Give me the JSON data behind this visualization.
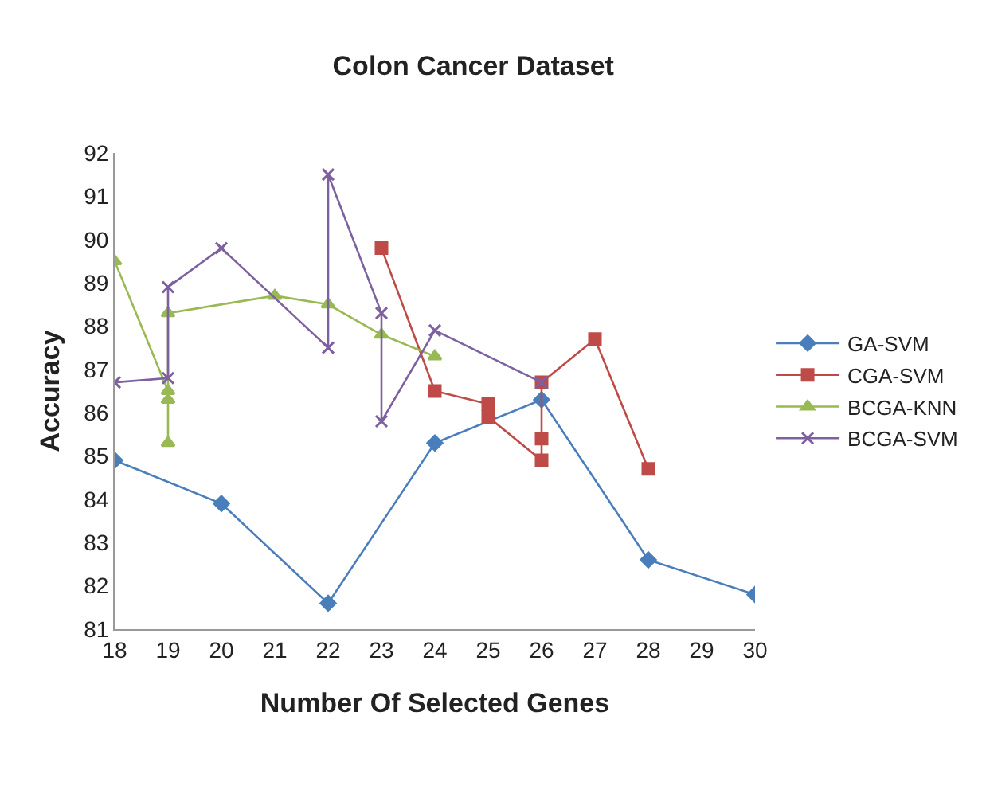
{
  "chart_data": {
    "type": "line",
    "title": "Colon Cancer Dataset",
    "xlabel": "Number Of Selected Genes",
    "ylabel": "Accuracy",
    "xlim": [
      18,
      30
    ],
    "xticks": [
      18,
      19,
      20,
      21,
      22,
      23,
      24,
      25,
      26,
      27,
      28,
      29,
      30
    ],
    "ylim": [
      81,
      92
    ],
    "yticks": [
      81,
      82,
      83,
      84,
      85,
      86,
      87,
      88,
      89,
      90,
      91,
      92
    ],
    "grid": false,
    "legend": "right",
    "series": [
      {
        "name": "GA-SVM",
        "color": "#4a7ebb",
        "marker": "diamond",
        "x": [
          18,
          20,
          22,
          24,
          26,
          28,
          30
        ],
        "values": [
          84.9,
          83.9,
          81.6,
          85.3,
          86.3,
          82.6,
          81.8
        ]
      },
      {
        "name": "CGA-SVM",
        "color": "#be4b48",
        "marker": "square",
        "x": [
          23,
          24,
          25,
          25,
          26,
          26,
          26,
          27,
          28
        ],
        "values": [
          89.8,
          86.5,
          86.2,
          85.9,
          84.9,
          85.4,
          86.7,
          87.7,
          84.7
        ]
      },
      {
        "name": "BCGA-KNN",
        "color": "#98b954",
        "marker": "triangle",
        "x": [
          18,
          19,
          19,
          19,
          19,
          21,
          22,
          23,
          24
        ],
        "values": [
          89.5,
          86.5,
          86.3,
          85.3,
          88.3,
          88.7,
          88.5,
          87.8,
          87.3
        ]
      },
      {
        "name": "BCGA-SVM",
        "color": "#7d60a0",
        "marker": "cross",
        "x": [
          18,
          19,
          19,
          20,
          22,
          22,
          23,
          23,
          24,
          26
        ],
        "values": [
          86.7,
          86.8,
          88.9,
          89.8,
          87.5,
          91.5,
          88.3,
          85.8,
          87.9,
          86.7
        ]
      }
    ]
  }
}
